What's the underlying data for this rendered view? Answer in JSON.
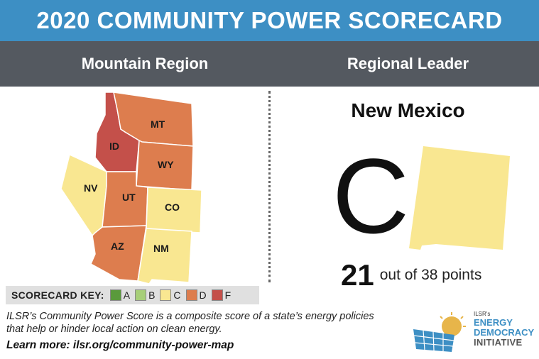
{
  "header": {
    "title": "2020 COMMUNITY POWER SCORECARD",
    "region_label": "Mountain Region",
    "leader_label": "Regional Leader"
  },
  "map": {
    "states": [
      {
        "abbr": "MT",
        "grade": "D"
      },
      {
        "abbr": "ID",
        "grade": "F"
      },
      {
        "abbr": "WY",
        "grade": "D"
      },
      {
        "abbr": "NV",
        "grade": "C"
      },
      {
        "abbr": "UT",
        "grade": "D"
      },
      {
        "abbr": "CO",
        "grade": "C"
      },
      {
        "abbr": "AZ",
        "grade": "D"
      },
      {
        "abbr": "NM",
        "grade": "C"
      }
    ]
  },
  "leader": {
    "state": "New Mexico",
    "grade": "C",
    "points": "21",
    "points_text": "out of 38 points"
  },
  "key": {
    "title": "SCORECARD KEY:",
    "items": [
      {
        "grade": "A",
        "color": "#5a9a3c"
      },
      {
        "grade": "B",
        "color": "#a7cf78"
      },
      {
        "grade": "C",
        "color": "#f9e791"
      },
      {
        "grade": "D",
        "color": "#dd7d4e"
      },
      {
        "grade": "F",
        "color": "#c4504a"
      }
    ]
  },
  "footer": {
    "description": "ILSR’s Community Power Score is a composite score of a state’s energy policies that help or hinder local action on clean energy.",
    "learn_more": "Learn more: ilsr.org/community-power-map"
  },
  "logo": {
    "small": "ILSR's",
    "line1": "ENERGY",
    "line2": "DEMOCRACY",
    "line3": "INITIATIVE",
    "icon": "solar-panel-sun-icon"
  },
  "colors": {
    "title_bar": "#3d8fc4",
    "sub_bar": "#545960",
    "grade_C": "#f9e791",
    "grade_D": "#dd7d4e",
    "grade_F": "#c4504a"
  }
}
